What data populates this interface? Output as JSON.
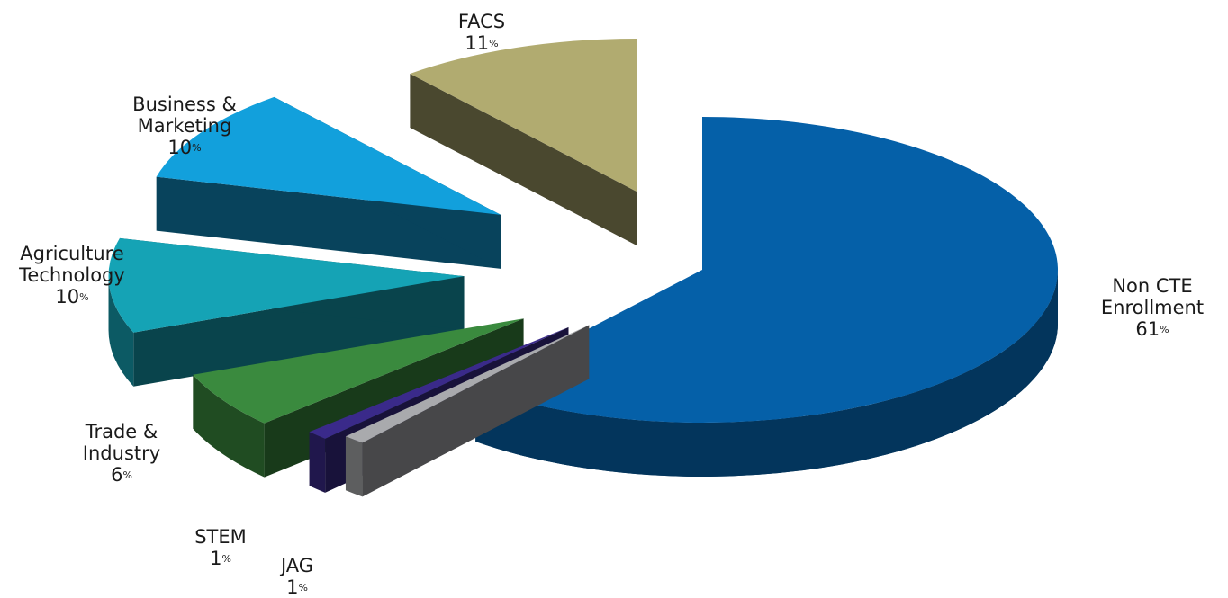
{
  "chart_data": {
    "type": "pie",
    "title": "",
    "unit": "%",
    "slices": [
      {
        "name": "Non CTE Enrollment",
        "label_lines": [
          "Non CTE",
          "Enrollment"
        ],
        "value": 61,
        "color": "#0560a8"
      },
      {
        "name": "JAG",
        "label_lines": [
          "JAG"
        ],
        "value": 1,
        "color": "#a9aaad"
      },
      {
        "name": "STEM",
        "label_lines": [
          "STEM"
        ],
        "value": 1,
        "color": "#3a2a8a"
      },
      {
        "name": "Trade & Industry",
        "label_lines": [
          "Trade &",
          "Industry"
        ],
        "value": 6,
        "color": "#3a8a3e"
      },
      {
        "name": "Agriculture Technology",
        "label_lines": [
          "Agriculture",
          "Technology"
        ],
        "value": 10,
        "color": "#15a3b5"
      },
      {
        "name": "Business & Marketing",
        "label_lines": [
          "Business &",
          "Marketing"
        ],
        "value": 10,
        "color": "#12a0dc"
      },
      {
        "name": "FACS",
        "label_lines": [
          "FACS"
        ],
        "value": 11,
        "color": "#b1ab70"
      }
    ]
  }
}
